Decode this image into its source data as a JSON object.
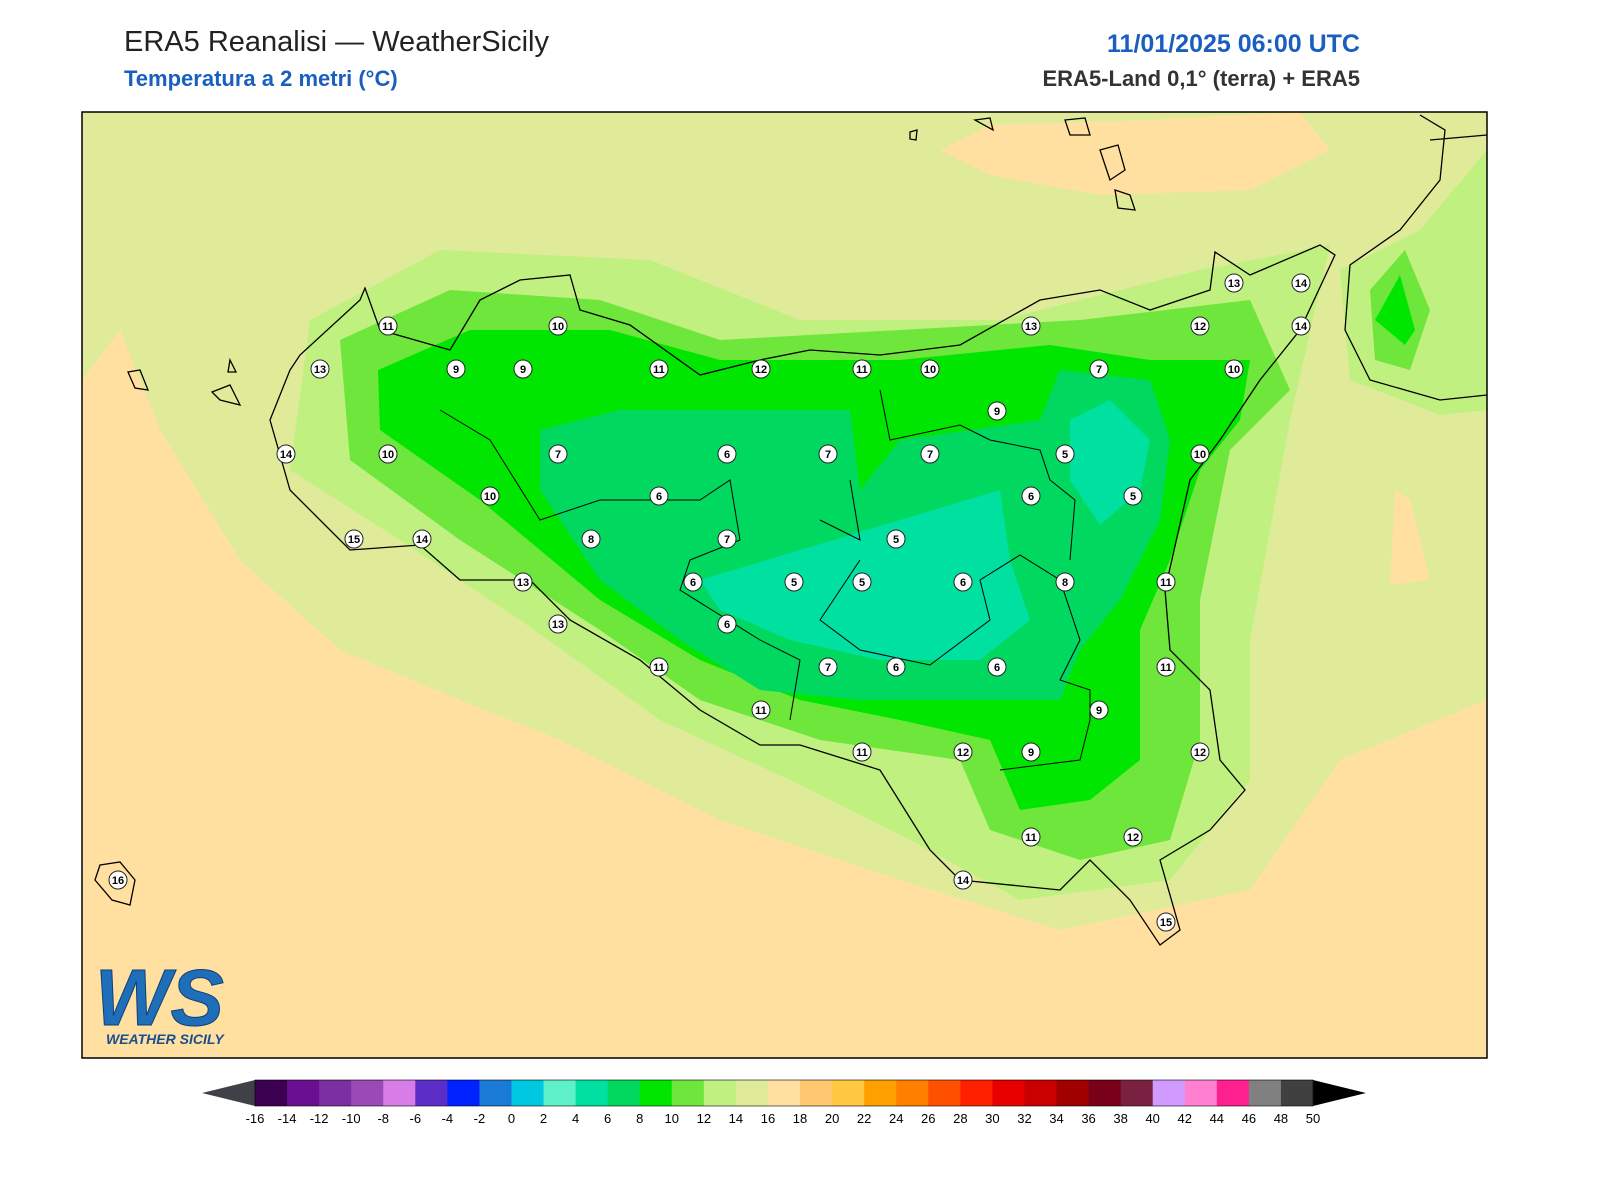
{
  "header": {
    "title": "ERA5 Reanalisi — WeatherSicily",
    "subtitle": "Temperatura a 2 metri (°C)",
    "date": "11/01/2025 06:00 UTC",
    "source": "ERA5-Land 0,1° (terra) + ERA5"
  },
  "stations": [
    11,
    10,
    13,
    9,
    9,
    11,
    12,
    11,
    10,
    13,
    12,
    13,
    14,
    14,
    7,
    10,
    9,
    14,
    10,
    7,
    6,
    7,
    7,
    5,
    10,
    10,
    6,
    6,
    5,
    15,
    14,
    8,
    7,
    5,
    13,
    6,
    5,
    5,
    6,
    8,
    11,
    13,
    6,
    11,
    7,
    6,
    6,
    11,
    11,
    9,
    11,
    12,
    9,
    12,
    11,
    12,
    14,
    16,
    15
  ],
  "colorbar": {
    "labels": [
      -16,
      -14,
      -12,
      -10,
      -8,
      -6,
      -4,
      -2,
      0,
      2,
      4,
      6,
      8,
      10,
      12,
      14,
      16,
      18,
      20,
      22,
      24,
      26,
      28,
      30,
      32,
      34,
      36,
      38,
      40,
      42,
      44,
      46,
      48,
      50
    ],
    "colors": [
      "#3b0050",
      "#6a0f8f",
      "#7b2fa3",
      "#9a4ab5",
      "#d87de8",
      "#5b2ec8",
      "#0022ff",
      "#1a7ad6",
      "#00c8e0",
      "#5ef0c8",
      "#00e0a0",
      "#00d860",
      "#00e600",
      "#6ee63c",
      "#c0f080",
      "#e0eb9a",
      "#ffe0a0",
      "#ffc870",
      "#ffc840",
      "#ffa000",
      "#ff8000",
      "#ff5000",
      "#ff2000",
      "#e60000",
      "#c80000",
      "#a00000",
      "#780018",
      "#7a2040",
      "#d09aff",
      "#ff80d0",
      "#ff2090",
      "#808080",
      "#404040"
    ],
    "extend_colors": [
      "#404048",
      "#000000"
    ]
  },
  "logo": {
    "mark": "WS",
    "name": "WEATHER SICILY"
  }
}
